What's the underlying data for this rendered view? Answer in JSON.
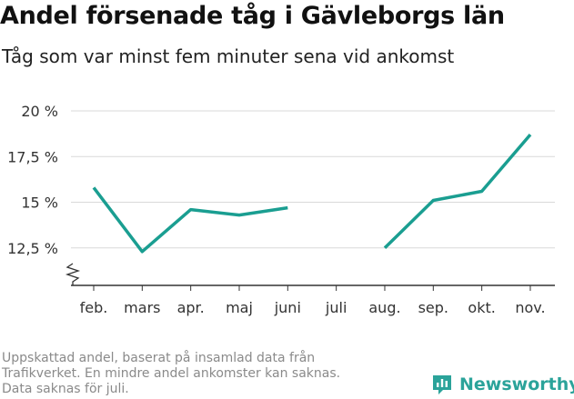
{
  "header": {
    "title": "Andel försenade tåg i Gävleborgs län",
    "subtitle": "Tåg som var minst fem minuter sena vid ankomst"
  },
  "footnote": {
    "lines": [
      "Uppskattad andel, baserat på insamlad data från",
      "Trafikverket. En mindre andel ankomster kan saknas.",
      "Data saknas för juli."
    ]
  },
  "brand": {
    "name": "Newsworthy",
    "logo_icon": "newsworthy-chart-icon",
    "color": "#2ba39a"
  },
  "chart_data": {
    "type": "line",
    "categories": [
      "feb.",
      "mars",
      "apr.",
      "maj",
      "juni",
      "juli",
      "aug.",
      "sep.",
      "okt.",
      "nov."
    ],
    "series": [
      {
        "values": [
          15.8,
          12.3,
          14.6,
          14.3,
          14.7,
          null,
          12.5,
          15.1,
          15.6,
          18.7
        ],
        "color": "#1a9e91"
      }
    ],
    "y_ticks": [
      {
        "value": 12.5,
        "label": "12,5 %"
      },
      {
        "value": 15,
        "label": "15 %"
      },
      {
        "value": 17.5,
        "label": "17,5 %"
      },
      {
        "value": 20,
        "label": "20 %"
      }
    ],
    "ylim": [
      10.5,
      20
    ],
    "y_axis_break": true,
    "grid": true,
    "grid_color": "#d9d9d9",
    "title": "",
    "xlabel": "",
    "ylabel": ""
  }
}
